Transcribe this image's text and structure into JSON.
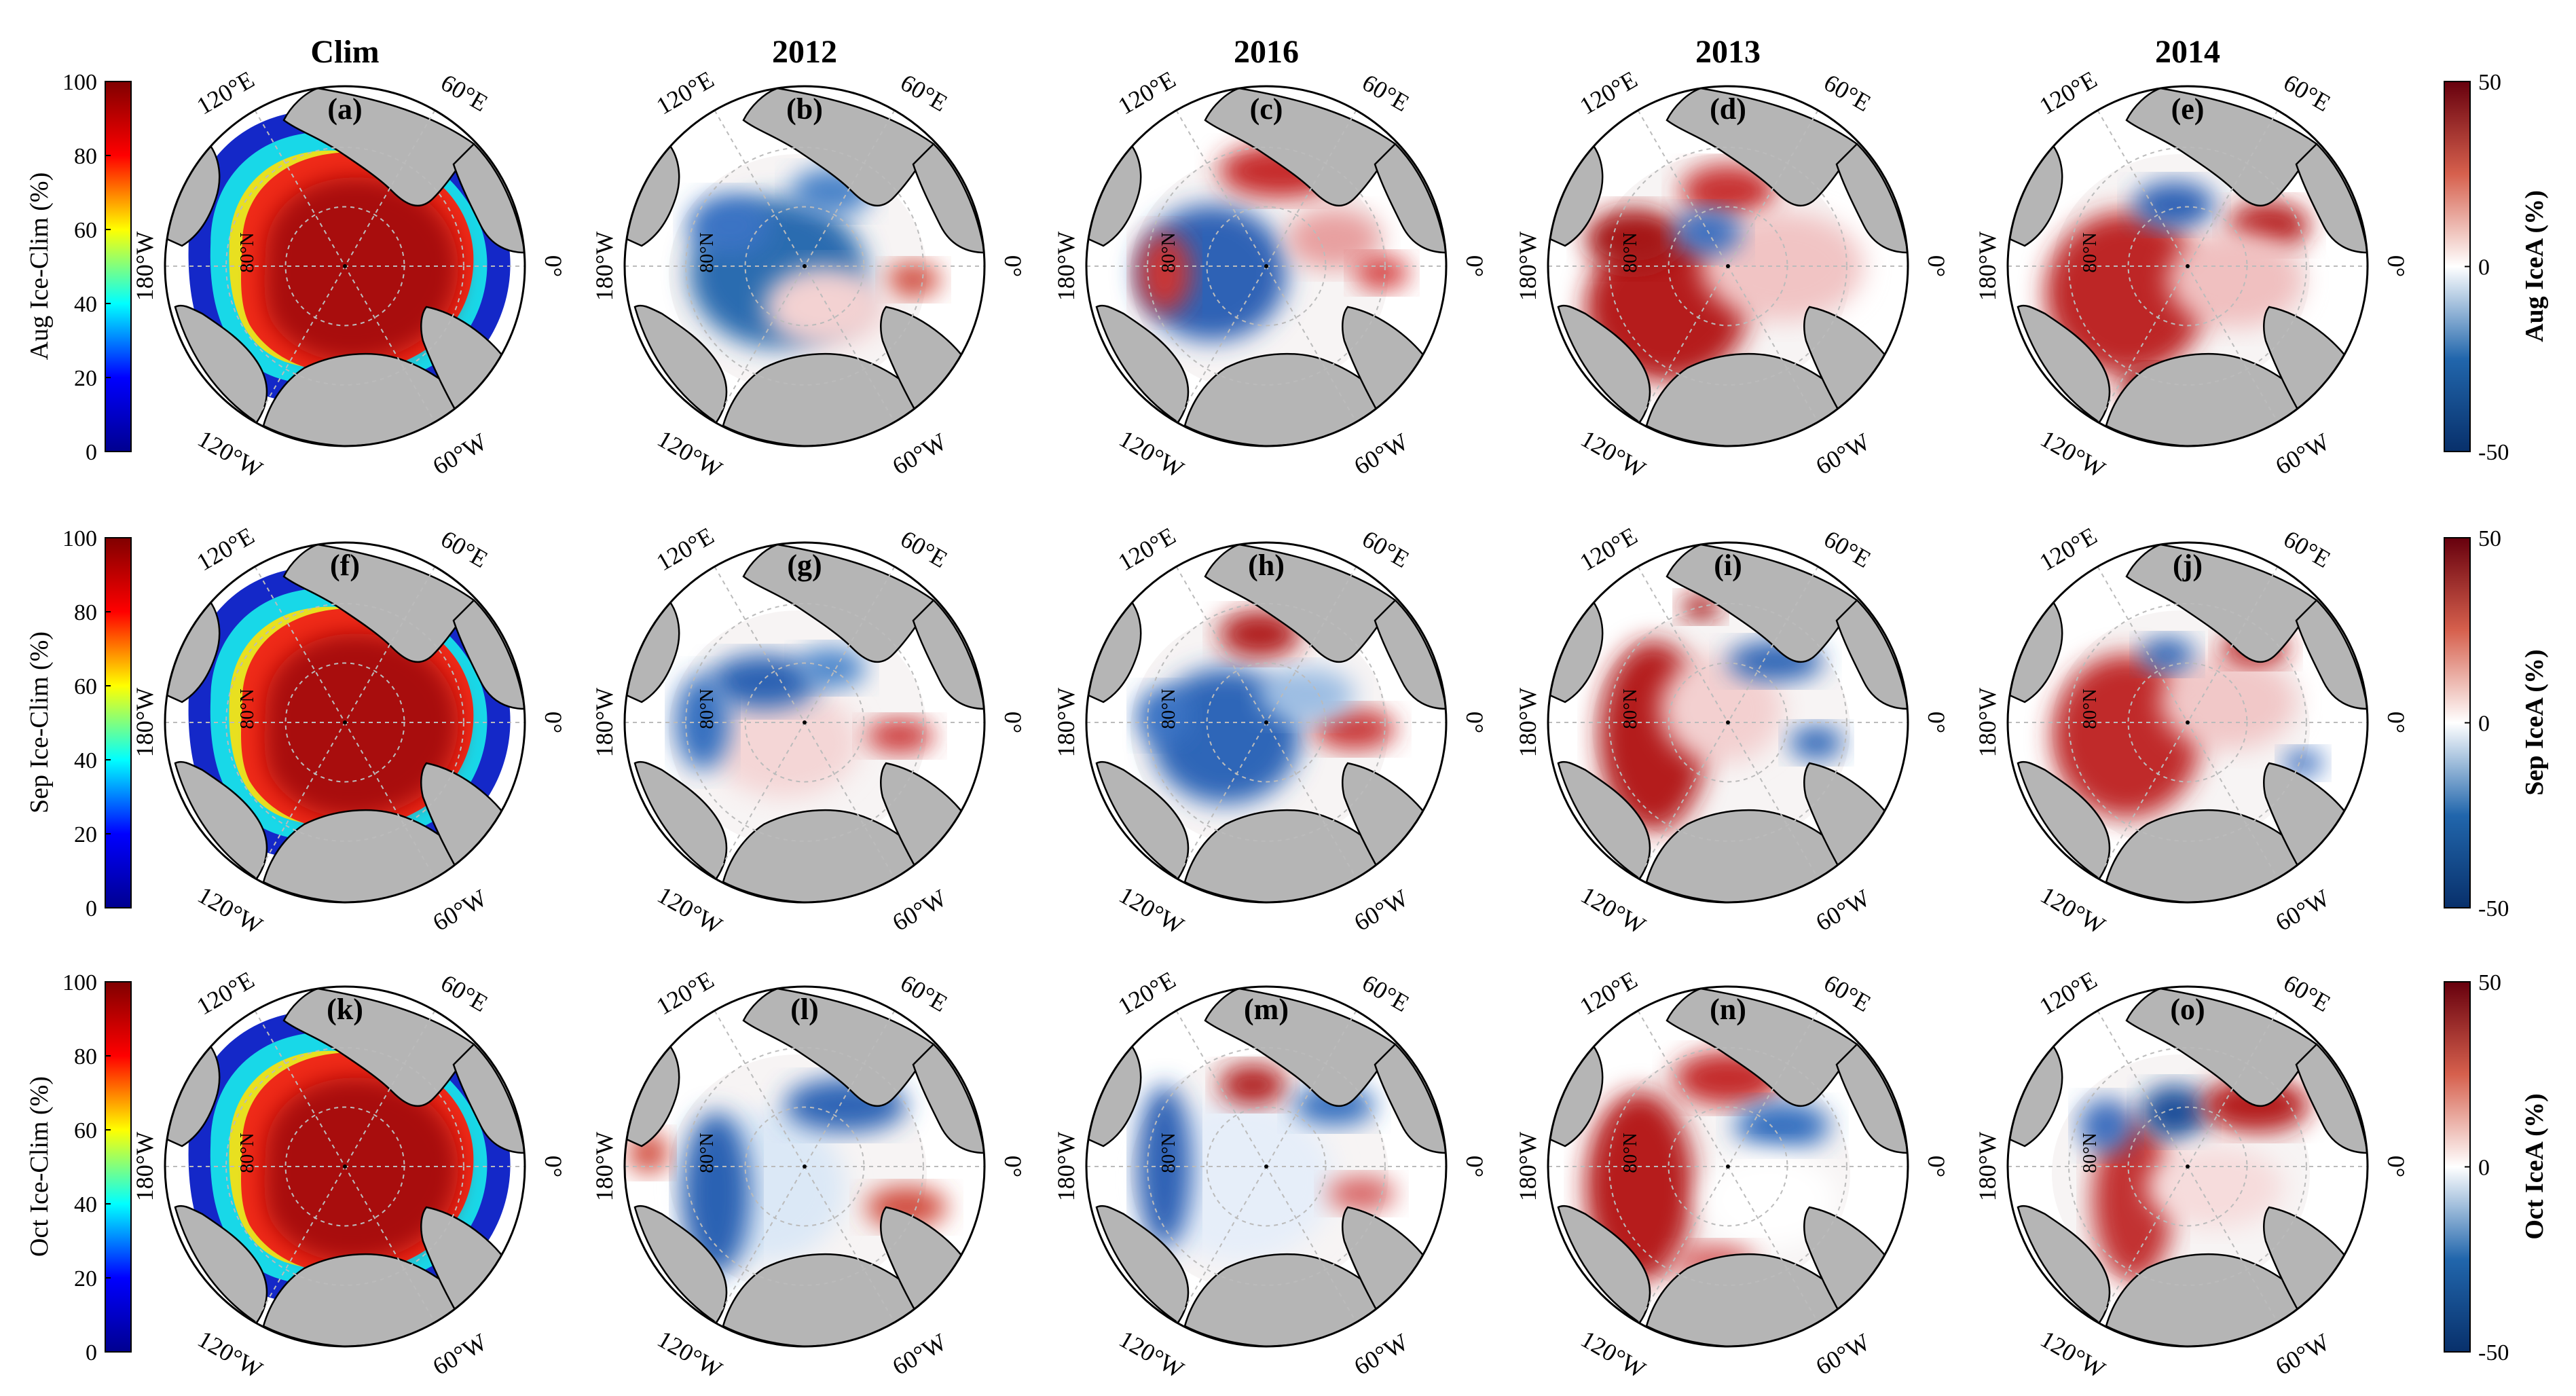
{
  "figure": {
    "columns": [
      "Clim",
      "2012",
      "2016",
      "2013",
      "2014"
    ],
    "panel_letters": [
      "(a)",
      "(b)",
      "(c)",
      "(d)",
      "(e)",
      "(f)",
      "(g)",
      "(h)",
      "(i)",
      "(j)",
      "(k)",
      "(l)",
      "(m)",
      "(n)",
      "(o)"
    ],
    "left_colorbar_labels": [
      "Aug Ice-Clim (%)",
      "Sep Ice-Clim (%)",
      "Oct Ice-Clim (%)"
    ],
    "right_colorbar_labels": [
      "Aug IceA (%)",
      "Sep IceA (%)",
      "Oct IceA (%)"
    ],
    "map_labels": {
      "e120": "120°E",
      "e60": "60°E",
      "w180": "180°W",
      "zero": "0°",
      "w120": "120°W",
      "w60": "60°W",
      "lat80": "80°N"
    }
  },
  "chart_data": [
    {
      "type": "heatmap",
      "panel": "(a)",
      "row": "Aug",
      "column": "Clim",
      "variable": "Aug Ice-Clim (%)",
      "clim": [
        0,
        100
      ],
      "colorbar_ticks": [
        0,
        20,
        40,
        60,
        80,
        100
      ],
      "colormap": "jet",
      "description_of_field": "high concentration (80-100%) over central Arctic, decreasing toward Siberian and Alaskan margins"
    },
    {
      "type": "heatmap",
      "panel": "(b)",
      "row": "Aug",
      "column": "2012",
      "variable": "Aug IceA (%)",
      "clim": [
        -50,
        50
      ],
      "colormap": "blue-white-red",
      "dominant_sign": "negative"
    },
    {
      "type": "heatmap",
      "panel": "(c)",
      "row": "Aug",
      "column": "2016",
      "variable": "Aug IceA (%)",
      "clim": [
        -50,
        50
      ],
      "colormap": "blue-white-red",
      "dominant_sign": "mixed"
    },
    {
      "type": "heatmap",
      "panel": "(d)",
      "row": "Aug",
      "column": "2013",
      "variable": "Aug IceA (%)",
      "clim": [
        -50,
        50
      ],
      "colormap": "blue-white-red",
      "dominant_sign": "positive"
    },
    {
      "type": "heatmap",
      "panel": "(e)",
      "row": "Aug",
      "column": "2014",
      "variable": "Aug IceA (%)",
      "clim": [
        -50,
        50
      ],
      "colormap": "blue-white-red",
      "dominant_sign": "positive"
    },
    {
      "type": "heatmap",
      "panel": "(f)",
      "row": "Sep",
      "column": "Clim",
      "variable": "Sep Ice-Clim (%)",
      "clim": [
        0,
        100
      ],
      "colorbar_ticks": [
        0,
        20,
        40,
        60,
        80,
        100
      ],
      "colormap": "jet"
    },
    {
      "type": "heatmap",
      "panel": "(g)",
      "row": "Sep",
      "column": "2012",
      "variable": "Sep IceA (%)",
      "clim": [
        -50,
        50
      ],
      "colormap": "blue-white-red",
      "dominant_sign": "negative"
    },
    {
      "type": "heatmap",
      "panel": "(h)",
      "row": "Sep",
      "column": "2016",
      "variable": "Sep IceA (%)",
      "clim": [
        -50,
        50
      ],
      "colormap": "blue-white-red",
      "dominant_sign": "negative"
    },
    {
      "type": "heatmap",
      "panel": "(i)",
      "row": "Sep",
      "column": "2013",
      "variable": "Sep IceA (%)",
      "clim": [
        -50,
        50
      ],
      "colormap": "blue-white-red",
      "dominant_sign": "positive"
    },
    {
      "type": "heatmap",
      "panel": "(j)",
      "row": "Sep",
      "column": "2014",
      "variable": "Sep IceA (%)",
      "clim": [
        -50,
        50
      ],
      "colormap": "blue-white-red",
      "dominant_sign": "positive"
    },
    {
      "type": "heatmap",
      "panel": "(k)",
      "row": "Oct",
      "column": "Clim",
      "variable": "Oct Ice-Clim (%)",
      "clim": [
        0,
        100
      ],
      "colorbar_ticks": [
        0,
        20,
        40,
        60,
        80,
        100
      ],
      "colormap": "jet"
    },
    {
      "type": "heatmap",
      "panel": "(l)",
      "row": "Oct",
      "column": "2012",
      "variable": "Oct IceA (%)",
      "clim": [
        -50,
        50
      ],
      "colormap": "blue-white-red",
      "dominant_sign": "negative"
    },
    {
      "type": "heatmap",
      "panel": "(m)",
      "row": "Oct",
      "column": "2016",
      "variable": "Oct IceA (%)",
      "clim": [
        -50,
        50
      ],
      "colormap": "blue-white-red",
      "dominant_sign": "negative"
    },
    {
      "type": "heatmap",
      "panel": "(n)",
      "row": "Oct",
      "column": "2013",
      "variable": "Oct IceA (%)",
      "clim": [
        -50,
        50
      ],
      "colormap": "blue-white-red",
      "dominant_sign": "positive"
    },
    {
      "type": "heatmap",
      "panel": "(o)",
      "row": "Oct",
      "column": "2014",
      "variable": "Oct IceA (%)",
      "clim": [
        -50,
        50
      ],
      "colormap": "blue-white-red",
      "dominant_sign": "positive"
    }
  ],
  "colorbars": {
    "left": {
      "ticks": [
        "0",
        "20",
        "40",
        "60",
        "80",
        "100"
      ],
      "colors": [
        "#00008f",
        "#0000ff",
        "#00ffff",
        "#ffff00",
        "#ff0000",
        "#800000"
      ]
    },
    "right": {
      "ticks": [
        "-50",
        "0",
        "50"
      ],
      "colors": [
        "#08306b",
        "#2166ac",
        "#ffffff",
        "#d6604d",
        "#67000d"
      ]
    }
  },
  "colors": {
    "land": "#b5b5b5",
    "ocean": "#ffffff",
    "coast": "#000000",
    "grid": "#bbbbbb"
  }
}
